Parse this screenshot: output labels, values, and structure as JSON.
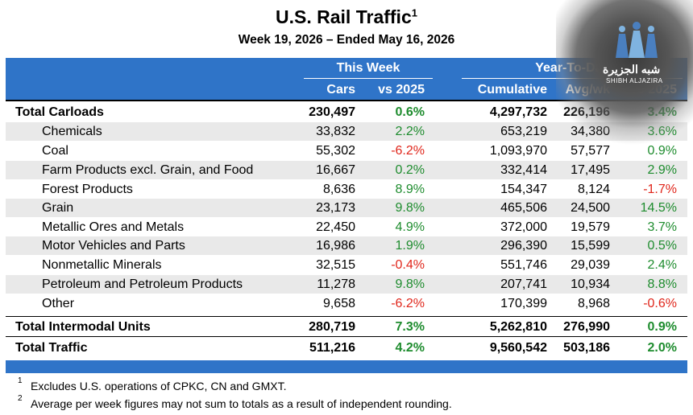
{
  "title": "U.S. Rail Traffic",
  "title_footnote_mark": "1",
  "subtitle": "Week 19, 2026 – Ended May 16, 2026",
  "header": {
    "this_week": "This Week",
    "year_to_date": "Year-To-Date",
    "cars": "Cars",
    "vs_2025": "vs 2025",
    "cumulative": "Cumulative",
    "avg_wk": "Avg/wk",
    "ytd_vs_2025": "vs 2025"
  },
  "rows": [
    {
      "label": "Total Carloads",
      "cars": "230,497",
      "vs": "0.6%",
      "cum": "4,297,732",
      "avg": "226,196",
      "ytd": "3.4%"
    },
    {
      "label": "Chemicals",
      "cars": "33,832",
      "vs": "2.2%",
      "cum": "653,219",
      "avg": "34,380",
      "ytd": "3.6%"
    },
    {
      "label": "Coal",
      "cars": "55,302",
      "vs": "-6.2%",
      "cum": "1,093,970",
      "avg": "57,577",
      "ytd": "0.9%"
    },
    {
      "label": "Farm Products excl. Grain, and Food",
      "cars": "16,667",
      "vs": "0.2%",
      "cum": "332,414",
      "avg": "17,495",
      "ytd": "2.9%"
    },
    {
      "label": "Forest Products",
      "cars": "8,636",
      "vs": "8.9%",
      "cum": "154,347",
      "avg": "8,124",
      "ytd": "-1.7%"
    },
    {
      "label": "Grain",
      "cars": "23,173",
      "vs": "9.8%",
      "cum": "465,506",
      "avg": "24,500",
      "ytd": "14.5%"
    },
    {
      "label": "Metallic Ores and Metals",
      "cars": "22,450",
      "vs": "4.9%",
      "cum": "372,000",
      "avg": "19,579",
      "ytd": "3.7%"
    },
    {
      "label": "Motor Vehicles and Parts",
      "cars": "16,986",
      "vs": "1.9%",
      "cum": "296,390",
      "avg": "15,599",
      "ytd": "0.5%"
    },
    {
      "label": "Nonmetallic Minerals",
      "cars": "32,515",
      "vs": "-0.4%",
      "cum": "551,746",
      "avg": "29,039",
      "ytd": "2.4%"
    },
    {
      "label": "Petroleum and Petroleum Products",
      "cars": "11,278",
      "vs": "9.8%",
      "cum": "207,741",
      "avg": "10,934",
      "ytd": "8.8%"
    },
    {
      "label": "Other",
      "cars": "9,658",
      "vs": "-6.2%",
      "cum": "170,399",
      "avg": "8,968",
      "ytd": "-0.6%"
    },
    {
      "label": "Total Intermodal Units",
      "cars": "280,719",
      "vs": "7.3%",
      "cum": "5,262,810",
      "avg": "276,990",
      "ytd": "0.9%"
    },
    {
      "label": "Total Traffic",
      "cars": "511,216",
      "vs": "4.2%",
      "cum": "9,560,542",
      "avg": "503,186",
      "ytd": "2.0%"
    }
  ],
  "colors": {
    "header_blue": "#2f74c8",
    "positive": "#1e8c2e",
    "negative": "#e0261b",
    "alt_row": "#e9e9e9"
  },
  "footnotes": [
    {
      "mark": "1",
      "text": "Excludes U.S. operations of CPKC, CN and GMXT."
    },
    {
      "mark": "2",
      "text": "Average per week figures may not sum to totals as a result of independent rounding."
    }
  ],
  "watermark": {
    "arabic": "شبه الجزيرة",
    "latin": "SHIBH ALJAZIRA"
  }
}
